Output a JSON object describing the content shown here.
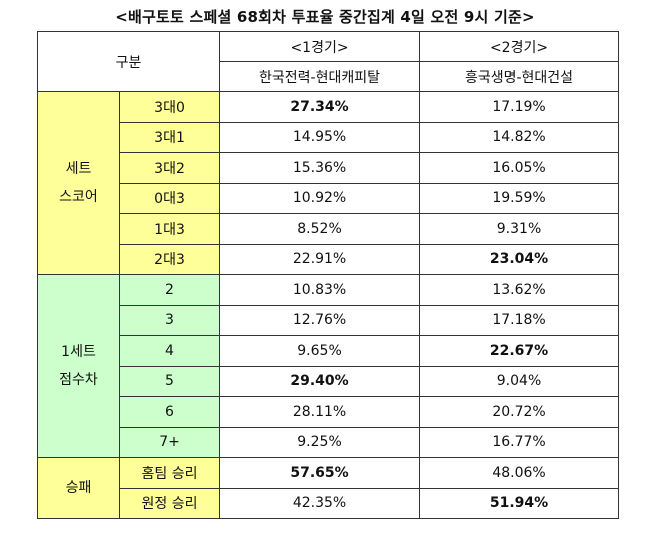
{
  "title": "<배구토토 스페셜 68회차 투표율 중간집계 4일 오전 9시 기준>",
  "header": {
    "category": "구분",
    "game1_no": "<1경기>",
    "game1_teams": "한국전력-현대캐피탈",
    "game2_no": "<2경기>",
    "game2_teams": "흥국생명-현대건설"
  },
  "groups": {
    "set_score": [
      "세트",
      "스코어"
    ],
    "set1_diff": [
      "1세트",
      "점수차"
    ],
    "win_loss": "승패"
  },
  "rows": [
    {
      "label": "3대0",
      "g1": "27.34%",
      "g2": "17.19%",
      "g1_bold": true,
      "g2_bold": false
    },
    {
      "label": "3대1",
      "g1": "14.95%",
      "g2": "14.82%",
      "g1_bold": false,
      "g2_bold": false
    },
    {
      "label": "3대2",
      "g1": "15.36%",
      "g2": "16.05%",
      "g1_bold": false,
      "g2_bold": false
    },
    {
      "label": "0대3",
      "g1": "10.92%",
      "g2": "19.59%",
      "g1_bold": false,
      "g2_bold": false
    },
    {
      "label": "1대3",
      "g1": "8.52%",
      "g2": "9.31%",
      "g1_bold": false,
      "g2_bold": false
    },
    {
      "label": "2대3",
      "g1": "22.91%",
      "g2": "23.04%",
      "g1_bold": false,
      "g2_bold": true
    },
    {
      "label": "2",
      "g1": "10.83%",
      "g2": "13.62%",
      "g1_bold": false,
      "g2_bold": false
    },
    {
      "label": "3",
      "g1": "12.76%",
      "g2": "17.18%",
      "g1_bold": false,
      "g2_bold": false
    },
    {
      "label": "4",
      "g1": "9.65%",
      "g2": "22.67%",
      "g1_bold": false,
      "g2_bold": true
    },
    {
      "label": "5",
      "g1": "29.40%",
      "g2": "9.04%",
      "g1_bold": true,
      "g2_bold": false
    },
    {
      "label": "6",
      "g1": "28.11%",
      "g2": "20.72%",
      "g1_bold": false,
      "g2_bold": false
    },
    {
      "label": "7+",
      "g1": "9.25%",
      "g2": "16.77%",
      "g1_bold": false,
      "g2_bold": false
    },
    {
      "label": "홈팀 승리",
      "g1": "57.65%",
      "g2": "48.06%",
      "g1_bold": true,
      "g2_bold": false
    },
    {
      "label": "원정 승리",
      "g1": "42.35%",
      "g2": "51.94%",
      "g1_bold": false,
      "g2_bold": true
    }
  ],
  "colors": {
    "set_score_bg": "#ffff99",
    "set1_diff_bg": "#ccffcc",
    "win_loss_bg": "#ffff99"
  }
}
